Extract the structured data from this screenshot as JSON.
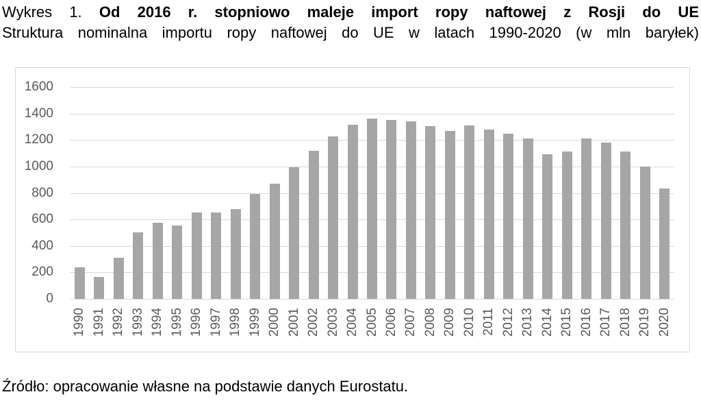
{
  "title": {
    "prefix": "Wykres 1.",
    "emphasis": "Od 2016 r. stopniowo maleje import ropy naftowej z Rosji do UE",
    "subtitle": "Struktura nominalna importu ropy naftowej do UE w latach 1990-2020 (w mln baryłek)"
  },
  "source": "Źródło: opracowanie własne na podstawie danych Eurostatu.",
  "chart_data": {
    "type": "bar",
    "title": "Struktura nominalna importu ropy naftowej do UE w latach 1990-2020 (w mln baryłek)",
    "categories": [
      "1990",
      "1991",
      "1992",
      "1993",
      "1994",
      "1995",
      "1996",
      "1997",
      "1998",
      "1999",
      "2000",
      "2001",
      "2002",
      "2003",
      "2004",
      "2005",
      "2006",
      "2007",
      "2008",
      "2009",
      "2010",
      "2011",
      "2012",
      "2013",
      "2014",
      "2015",
      "2016",
      "2017",
      "2018",
      "2019",
      "2020"
    ],
    "values": [
      240,
      165,
      310,
      500,
      575,
      555,
      650,
      650,
      680,
      790,
      870,
      995,
      1120,
      1225,
      1315,
      1360,
      1350,
      1340,
      1305,
      1270,
      1310,
      1280,
      1250,
      1210,
      1095,
      1115,
      1210,
      1180,
      1115,
      1000,
      835
    ],
    "xlabel": "",
    "ylabel": "",
    "ylim": [
      0,
      1600
    ],
    "ytick_step": 200,
    "grid": true,
    "legend": "none",
    "bar_color": "#a6a6a6",
    "gridline_color": "#d9d9d9",
    "axis_label_color": "#595959",
    "frame_color": "#d9d9d9"
  }
}
